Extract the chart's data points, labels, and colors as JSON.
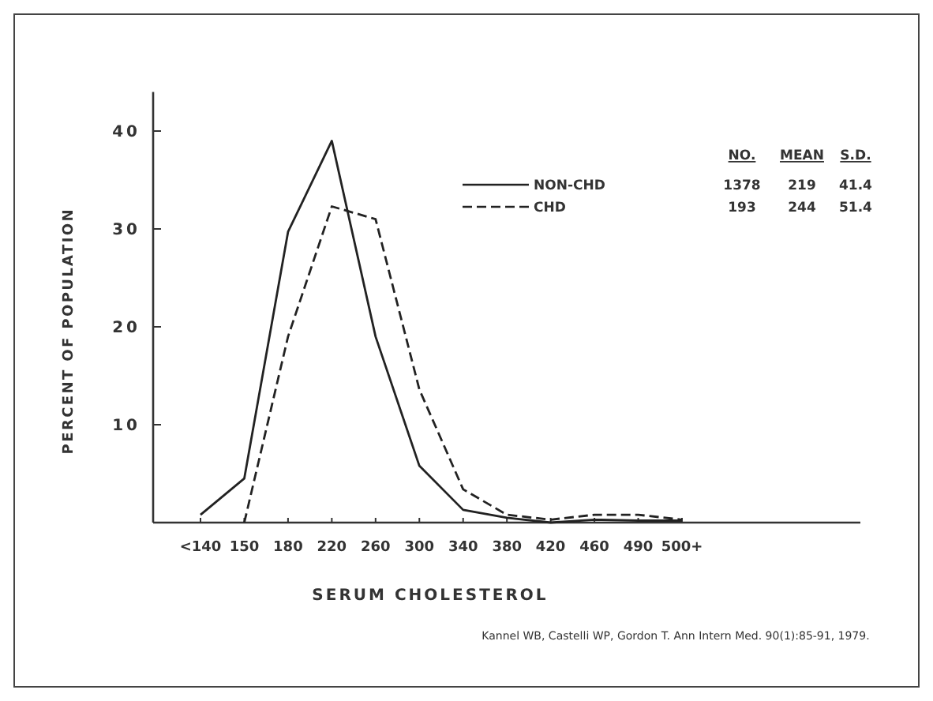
{
  "chart_data": {
    "type": "line",
    "xlabel": "SERUM CHOLESTEROL",
    "ylabel": "PERCENT OF POPULATION",
    "categories": [
      "<140",
      "150",
      "180",
      "220",
      "260",
      "300",
      "340",
      "380",
      "420",
      "460",
      "490",
      "500+"
    ],
    "series": [
      {
        "name": "NON-CHD",
        "color": "#222222",
        "line_style": "solid",
        "values": [
          0.8,
          4.5,
          29.7,
          39,
          19,
          5.8,
          1.3,
          0.5,
          0,
          0.3,
          0.2,
          0.2
        ]
      },
      {
        "name": "CHD",
        "color": "#222222",
        "line_style": "dashed",
        "values": [
          null,
          0,
          19,
          32.3,
          31,
          13.6,
          3.4,
          0.8,
          0.3,
          0.8,
          0.8,
          0.3
        ]
      }
    ],
    "ylim": [
      0,
      44
    ],
    "yticks": [
      10,
      20,
      30,
      40
    ],
    "legend": "top right",
    "marker": "none",
    "grid": false,
    "annotations": [
      "NO.",
      "MEAN",
      "S.D.",
      "1378",
      "219",
      "41.4",
      "193",
      "244",
      "51.4",
      "Kannel WB, Castelli WP, Gordon T.  Ann Intern Med. 90(1):85-91, 1979."
    ]
  }
}
